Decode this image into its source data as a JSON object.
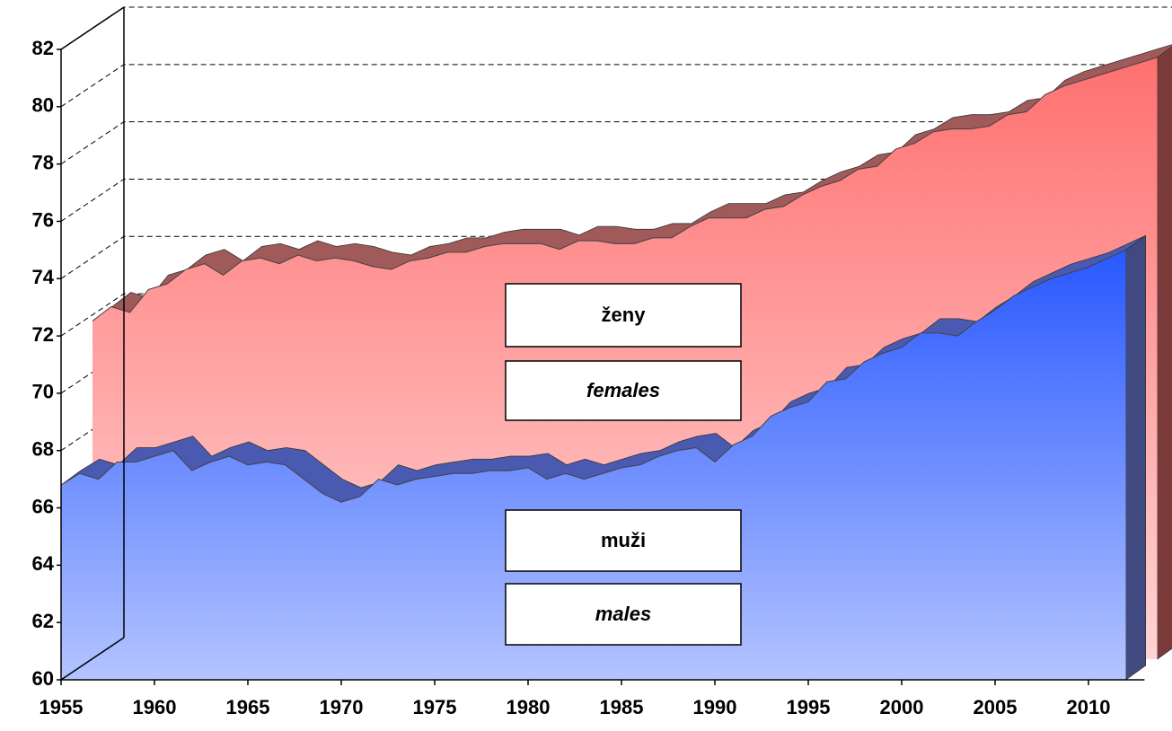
{
  "chart_data": {
    "type": "area3d",
    "x": [
      1955,
      1956,
      1957,
      1958,
      1959,
      1960,
      1961,
      1962,
      1963,
      1964,
      1965,
      1966,
      1967,
      1968,
      1969,
      1970,
      1971,
      1972,
      1973,
      1974,
      1975,
      1976,
      1977,
      1978,
      1979,
      1980,
      1981,
      1982,
      1983,
      1984,
      1985,
      1986,
      1987,
      1988,
      1989,
      1990,
      1991,
      1992,
      1993,
      1994,
      1995,
      1996,
      1997,
      1998,
      1999,
      2000,
      2001,
      2002,
      2003,
      2004,
      2005,
      2006,
      2007,
      2008,
      2009,
      2010,
      2011,
      2012
    ],
    "series": [
      {
        "name": "ženy",
        "name_en": "females",
        "color": "#ff7070",
        "values": [
          71.8,
          72.3,
          72.1,
          72.9,
          73.1,
          73.6,
          73.8,
          73.4,
          73.9,
          74.0,
          73.8,
          74.1,
          73.9,
          74.0,
          73.9,
          73.7,
          73.6,
          73.9,
          74.0,
          74.2,
          74.2,
          74.4,
          74.5,
          74.5,
          74.5,
          74.3,
          74.6,
          74.6,
          74.5,
          74.5,
          74.7,
          74.7,
          75.1,
          75.4,
          75.4,
          75.4,
          75.7,
          75.8,
          76.2,
          76.5,
          76.7,
          77.1,
          77.2,
          77.8,
          78.0,
          78.4,
          78.5,
          78.5,
          78.6,
          79.0,
          79.1,
          79.7,
          80.0,
          80.2,
          80.4,
          80.6,
          80.8,
          81.0
        ]
      },
      {
        "name": "muži",
        "name_en": "males",
        "color": "#3060ff",
        "values": [
          66.8,
          67.2,
          67.0,
          67.6,
          67.6,
          67.8,
          68.0,
          67.3,
          67.6,
          67.8,
          67.5,
          67.6,
          67.5,
          67.0,
          66.5,
          66.2,
          66.4,
          67.0,
          66.8,
          67.0,
          67.1,
          67.2,
          67.2,
          67.3,
          67.3,
          67.4,
          67.0,
          67.2,
          67.0,
          67.2,
          67.4,
          67.5,
          67.8,
          68.0,
          68.1,
          67.6,
          68.2,
          68.5,
          69.2,
          69.5,
          69.7,
          70.4,
          70.5,
          71.1,
          71.4,
          71.6,
          72.1,
          72.1,
          72.0,
          72.5,
          72.9,
          73.4,
          73.7,
          74.0,
          74.2,
          74.4,
          74.7,
          75.0
        ]
      }
    ],
    "xlim": [
      1955,
      2013
    ],
    "xticks": [
      1955,
      1960,
      1965,
      1970,
      1975,
      1980,
      1985,
      1990,
      1995,
      2000,
      2005,
      2010
    ],
    "ylim": [
      60,
      82
    ],
    "yticks": [
      60,
      62,
      64,
      66,
      68,
      70,
      72,
      74,
      76,
      78,
      80,
      82
    ],
    "grid": true
  }
}
